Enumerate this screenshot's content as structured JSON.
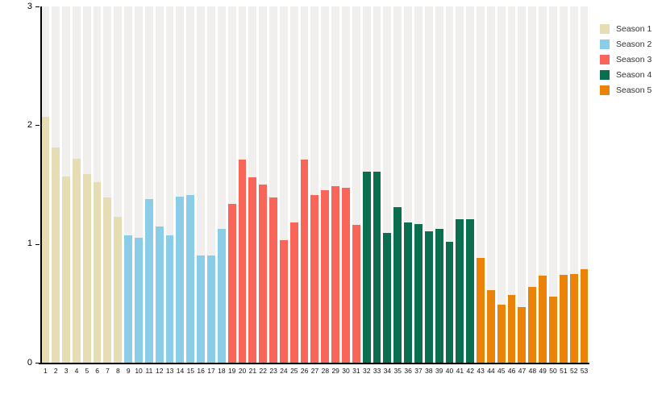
{
  "chart_data": {
    "type": "bar",
    "title": "",
    "xlabel": "",
    "ylabel": "",
    "ylim": [
      0,
      3
    ],
    "yticks": [
      0,
      1,
      2,
      3
    ],
    "grid": "vertical-stripes",
    "legend_position": "top-right",
    "x_labels": [
      "1",
      "2",
      "3",
      "4",
      "5",
      "6",
      "7",
      "8",
      "9",
      "10",
      "11",
      "12",
      "13",
      "14",
      "15",
      "16",
      "17",
      "18",
      "19",
      "20",
      "21",
      "22",
      "23",
      "24",
      "25",
      "26",
      "27",
      "28",
      "29",
      "30",
      "31",
      "32",
      "33",
      "34",
      "35",
      "36",
      "37",
      "38",
      "39",
      "40",
      "41",
      "42",
      "43",
      "44",
      "45",
      "46",
      "47",
      "48",
      "49",
      "50",
      "51",
      "52",
      "53"
    ],
    "series": [
      {
        "name": "Season 1",
        "color": "#e7ddb5",
        "episode_range": [
          1,
          8
        ],
        "values": [
          2.07,
          1.81,
          1.57,
          1.72,
          1.59,
          1.52,
          1.39,
          1.23
        ]
      },
      {
        "name": "Season 2",
        "color": "#8bcde6",
        "episode_range": [
          9,
          18
        ],
        "values": [
          1.07,
          1.05,
          1.38,
          1.15,
          1.07,
          1.4,
          1.41,
          0.9,
          0.9,
          1.13
        ]
      },
      {
        "name": "Season 3",
        "color": "#fa655a",
        "episode_range": [
          19,
          31
        ],
        "values": [
          1.34,
          1.71,
          1.56,
          1.5,
          1.39,
          1.03,
          1.18,
          1.71,
          1.41,
          1.45,
          1.49,
          1.47,
          1.16
        ]
      },
      {
        "name": "Season 4",
        "color": "#0b6e4f",
        "episode_range": [
          32,
          42
        ],
        "values": [
          1.61,
          1.61,
          1.09,
          1.31,
          1.18,
          1.17,
          1.11,
          1.13,
          1.02,
          1.21,
          1.21
        ]
      },
      {
        "name": "Season 5",
        "color": "#eb8309",
        "episode_range": [
          43,
          53
        ],
        "values": [
          0.88,
          0.61,
          0.49,
          0.57,
          0.47,
          0.64,
          0.73,
          0.56,
          0.74,
          0.75,
          0.79
        ]
      }
    ]
  },
  "colors": {
    "stripe": "#f0efed",
    "axis": "#000000",
    "legend_text": "#333333"
  }
}
